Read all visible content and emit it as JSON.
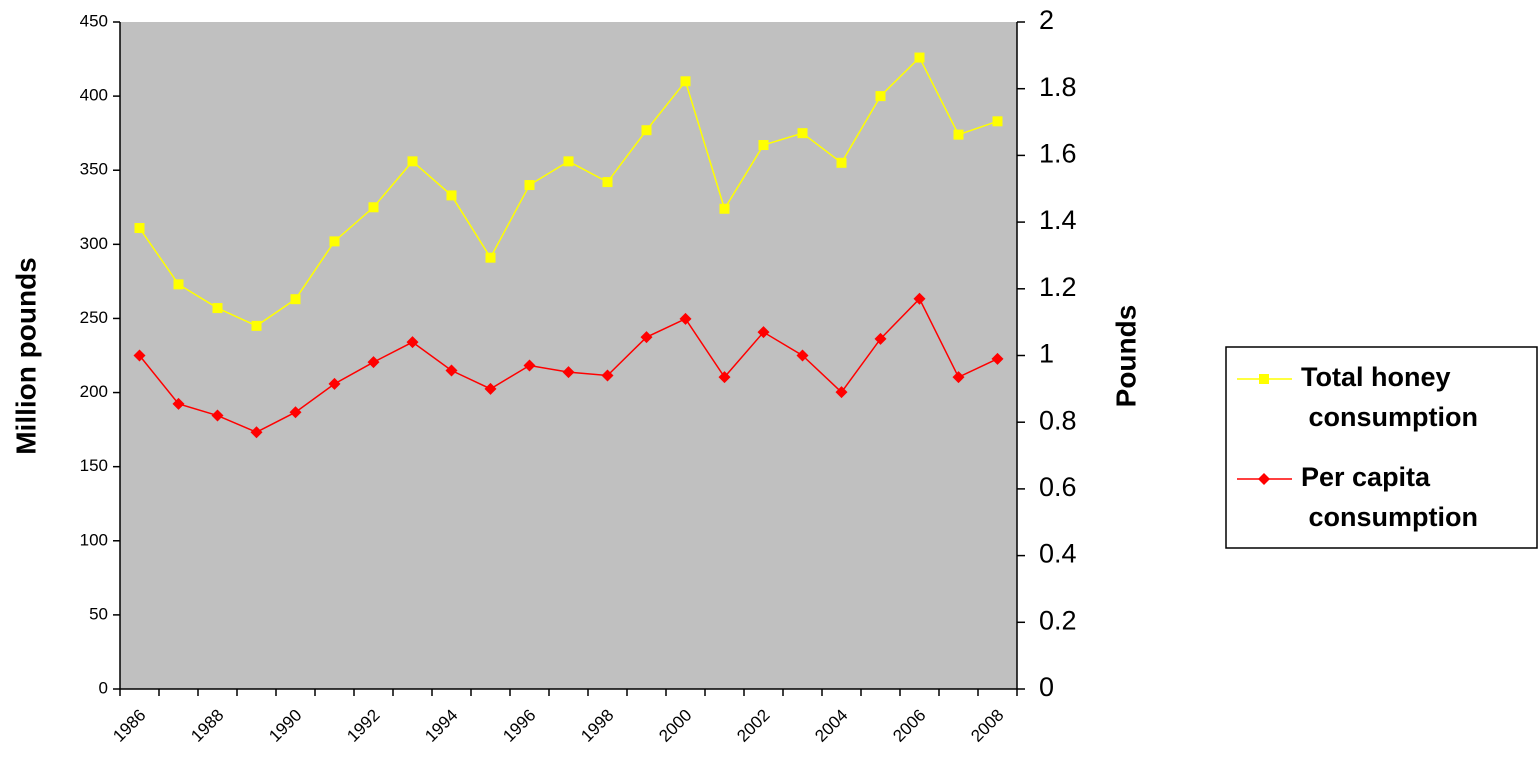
{
  "chart_data": {
    "type": "line",
    "y_label": "Million pounds",
    "y2_label": "Pounds",
    "categories": [
      "1986",
      null,
      "1988",
      null,
      "1990",
      null,
      "1992",
      null,
      "1994",
      null,
      "1996",
      null,
      "1998",
      null,
      "2000",
      null,
      "2002",
      null,
      "2004",
      null,
      "2006",
      null,
      "2008"
    ],
    "series": [
      {
        "name": "Total honey consumption",
        "color": "#ffff00",
        "marker": "square",
        "values": [
          311,
          273,
          257,
          245,
          263,
          302,
          325,
          356,
          333,
          291,
          340,
          356,
          342,
          377,
          410,
          324,
          367,
          375,
          355,
          400,
          426,
          374,
          383
        ]
      },
      {
        "name": "Per capita consumption",
        "color": "#ff0000",
        "marker": "diamond",
        "axis": "y2",
        "values": [
          1.0,
          0.855,
          0.82,
          0.77,
          0.83,
          0.915,
          0.98,
          1.04,
          0.955,
          0.9,
          0.97,
          0.95,
          0.94,
          1.055,
          1.11,
          0.935,
          1.07,
          1.0,
          0.89,
          1.05,
          1.17,
          0.935,
          0.99
        ]
      }
    ],
    "ylim": [
      0,
      450
    ],
    "yticks": [
      0,
      50,
      100,
      150,
      200,
      250,
      300,
      350,
      400,
      450
    ],
    "y2lim": [
      0,
      2
    ],
    "y2ticks": [
      0,
      0.2,
      0.4,
      0.6,
      0.8,
      1,
      1.2,
      1.4,
      1.6,
      1.8,
      2
    ],
    "plot_background": "#c0c0c0",
    "legend": "right"
  }
}
